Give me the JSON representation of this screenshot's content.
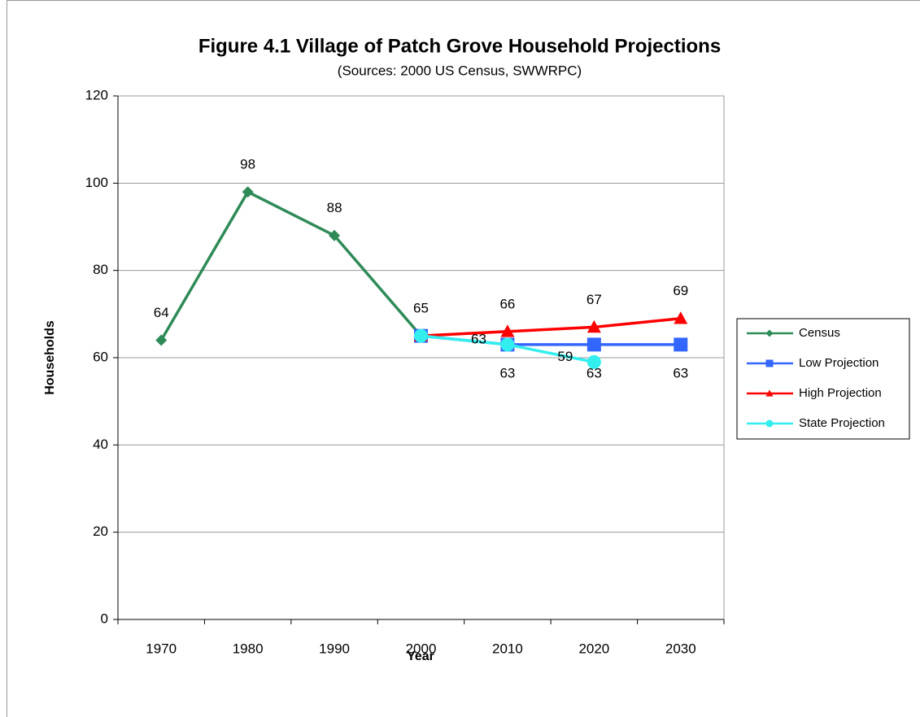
{
  "chart_data": {
    "type": "line",
    "title": "Figure 4.1 Village of Patch Grove Household Projections",
    "subtitle": "(Sources:  2000 US Census, SWWRPC)",
    "x_label": "Year",
    "y_label": "Households",
    "categories": [
      "1970",
      "1980",
      "1990",
      "2000",
      "2010",
      "2020",
      "2030"
    ],
    "ylim": [
      0,
      120
    ],
    "yticks": [
      0,
      20,
      40,
      60,
      80,
      100,
      120
    ],
    "grid": true,
    "legend": "right",
    "series": [
      {
        "name": "Census",
        "color": "#2e8b57",
        "marker": "diamond",
        "label_position": "above",
        "values": [
          64,
          98,
          88,
          65,
          null,
          null,
          null
        ],
        "value_labels": [
          "64",
          "98",
          "88",
          "65",
          null,
          null,
          null
        ]
      },
      {
        "name": "Low Projection",
        "color": "#3366ff",
        "marker": "square",
        "label_position": "below",
        "values": [
          null,
          null,
          null,
          65,
          63,
          63,
          63
        ],
        "value_labels": [
          null,
          null,
          null,
          null,
          "63",
          "63",
          "63"
        ]
      },
      {
        "name": "High Projection",
        "color": "#ff0000",
        "marker": "triangle",
        "label_position": "above",
        "values": [
          null,
          null,
          null,
          65,
          66,
          67,
          69
        ],
        "value_labels": [
          null,
          null,
          null,
          null,
          "66",
          "67",
          "69"
        ]
      },
      {
        "name": "State Projection",
        "color": "#33eeee",
        "marker": "circle",
        "label_position": "left",
        "values": [
          null,
          null,
          null,
          65,
          63,
          59,
          null
        ],
        "value_labels": [
          null,
          null,
          null,
          null,
          "63",
          "59",
          null
        ]
      }
    ]
  }
}
